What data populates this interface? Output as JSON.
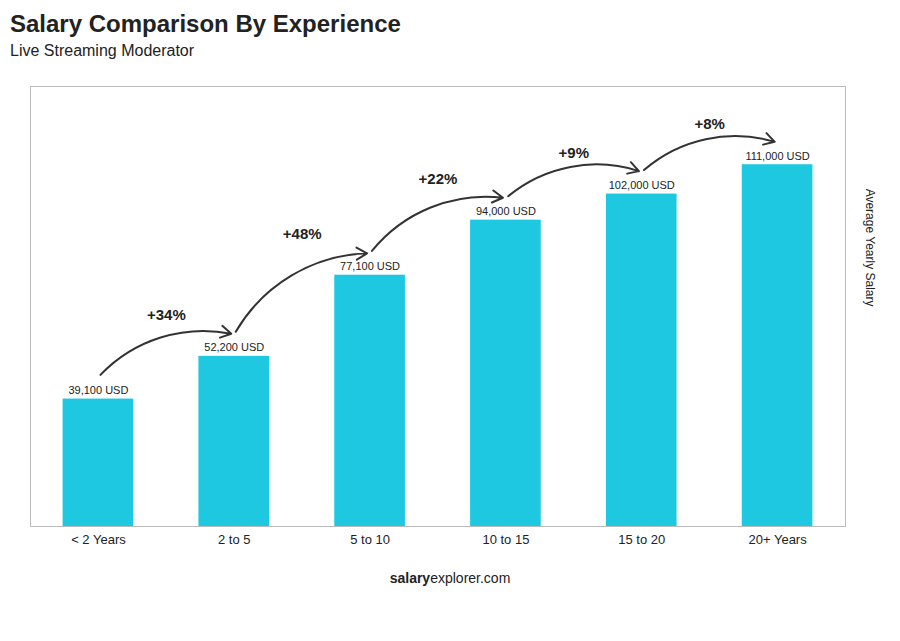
{
  "chart_data": {
    "type": "bar",
    "title": "Salary Comparison By Experience",
    "subtitle": "Live Streaming Moderator",
    "categories": [
      "< 2 Years",
      "2 to 5",
      "5 to 10",
      "10 to 15",
      "15 to 20",
      "20+ Years"
    ],
    "values": [
      39100,
      52200,
      77100,
      94000,
      102000,
      111000
    ],
    "value_labels": [
      "39,100 USD",
      "52,200 USD",
      "77,100 USD",
      "94,000 USD",
      "102,000 USD",
      "111,000 USD"
    ],
    "data_labels": true,
    "color": "#1ec8e0",
    "ylabel": "Average Yearly Salary",
    "ylim": [
      0,
      135000
    ],
    "tick_labels": "x",
    "grid": false,
    "change_labels": [
      "+34%",
      "+48%",
      "+22%",
      "+9%",
      "+8%"
    ],
    "footer": [
      "salary",
      "explorer.com"
    ]
  }
}
